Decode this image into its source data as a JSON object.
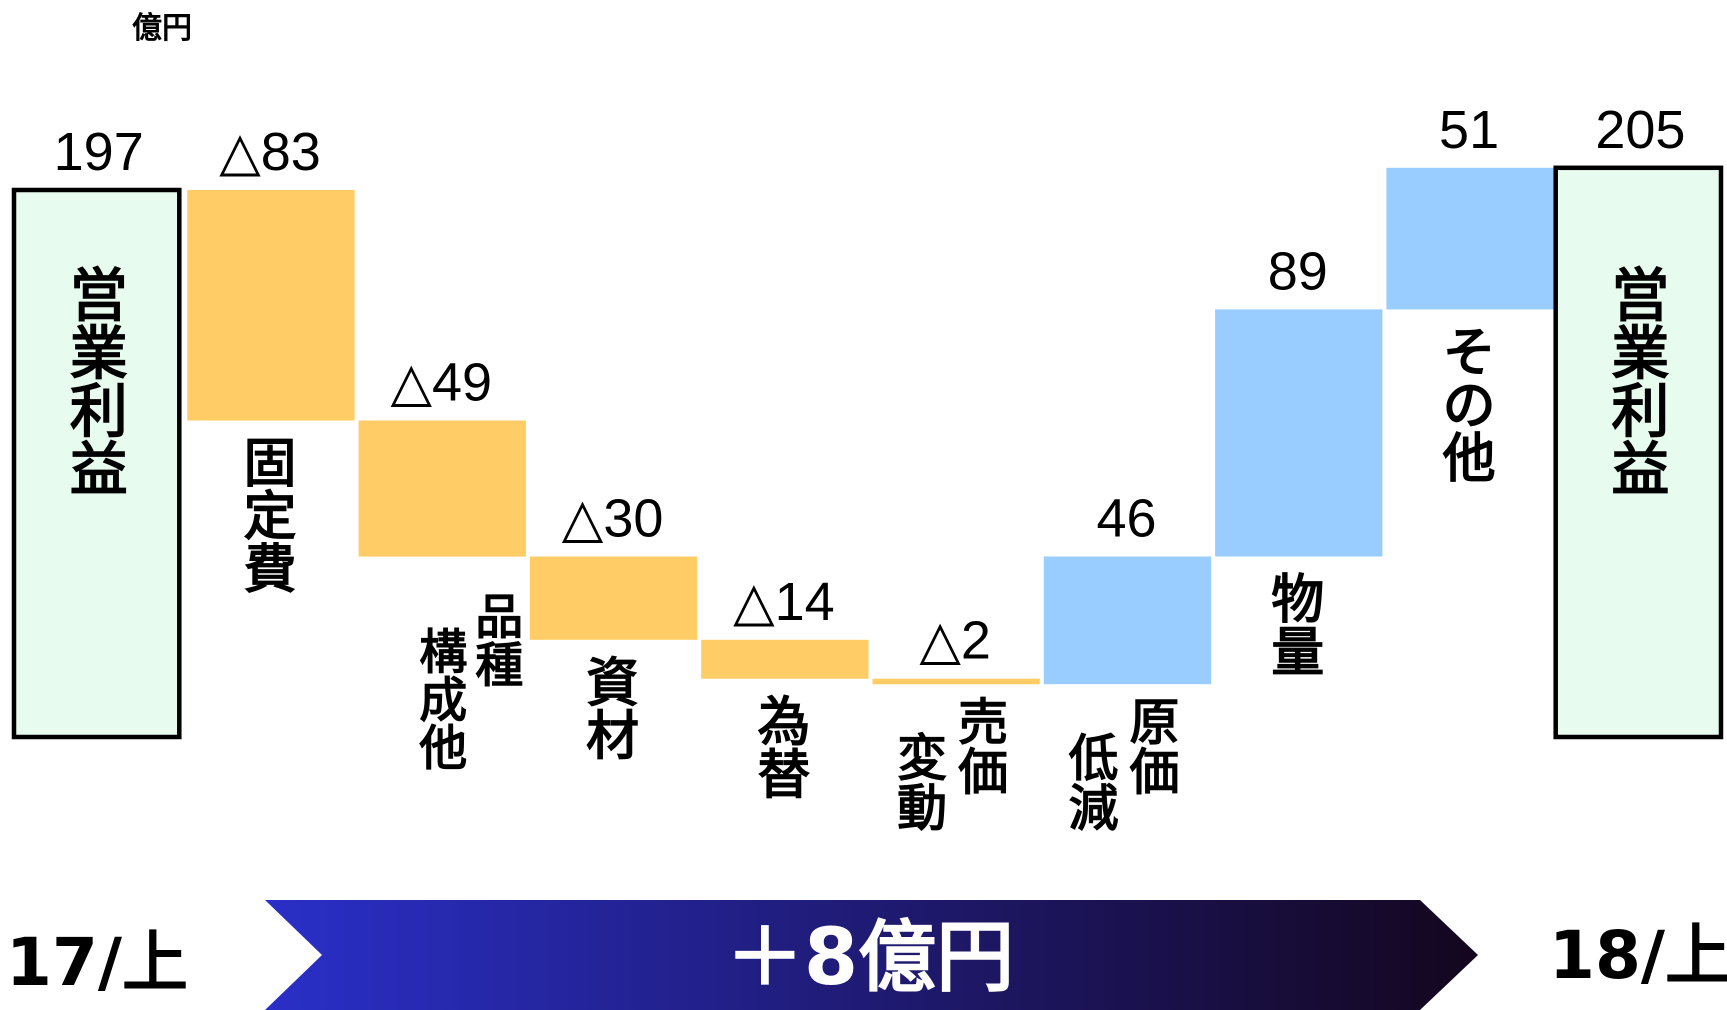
{
  "unit_label": "億円",
  "start_period": "17/上",
  "end_period": "18/上",
  "banner_text": "＋8億円",
  "colors": {
    "negative": "#FFCC66",
    "positive": "#99CCFF",
    "total_fill": "#E8FBEF",
    "total_border": "#000000",
    "banner_start": "#2A2FC8",
    "banner_end": "#14061E"
  },
  "chart_data": {
    "type": "bar",
    "subtype": "waterfall",
    "start_total": 197,
    "end_total": 205,
    "items": [
      {
        "kind": "total",
        "value": 197,
        "label_text": "197",
        "category": "営業利益"
      },
      {
        "kind": "delta",
        "value": -83,
        "label_text": "△83",
        "category": "固定費"
      },
      {
        "kind": "delta",
        "value": -49,
        "label_text": "△49",
        "category": "品種構成他"
      },
      {
        "kind": "delta",
        "value": -30,
        "label_text": "△30",
        "category": "資材"
      },
      {
        "kind": "delta",
        "value": -14,
        "label_text": "△14",
        "category": "為替"
      },
      {
        "kind": "delta",
        "value": -2,
        "label_text": "△2",
        "category": "売価変動"
      },
      {
        "kind": "delta",
        "value": 46,
        "label_text": "46",
        "category": "原価低減"
      },
      {
        "kind": "delta",
        "value": 89,
        "label_text": "89",
        "category": "物量"
      },
      {
        "kind": "delta",
        "value": 51,
        "label_text": "51",
        "category": "その他"
      },
      {
        "kind": "total",
        "value": 205,
        "label_text": "205",
        "category": "営業利益"
      }
    ]
  }
}
